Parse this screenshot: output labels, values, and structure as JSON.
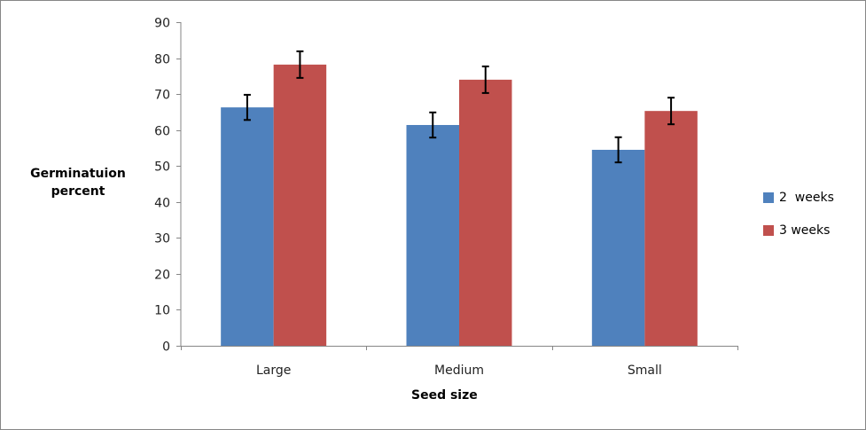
{
  "chart_data": {
    "type": "bar",
    "title": "",
    "xlabel": "Seed size",
    "ylabel": "Germinatuion percent",
    "ylabel_lines": [
      "Germinatuion",
      "percent"
    ],
    "categories": [
      "Large",
      "Medium",
      "Small"
    ],
    "ylim": [
      0,
      90
    ],
    "yticks": [
      0,
      10,
      20,
      30,
      40,
      50,
      60,
      70,
      80,
      90
    ],
    "grid": false,
    "legend_position": "right",
    "series": [
      {
        "name": "2  weeks",
        "color": "#4F81BD",
        "values": [
          66.3,
          61.4,
          54.5
        ],
        "errors": [
          3.5,
          3.5,
          3.5
        ]
      },
      {
        "name": "3 weeks",
        "color": "#C0504D",
        "values": [
          78.2,
          74.0,
          65.3
        ],
        "errors": [
          3.7,
          3.7,
          3.7
        ]
      }
    ]
  }
}
